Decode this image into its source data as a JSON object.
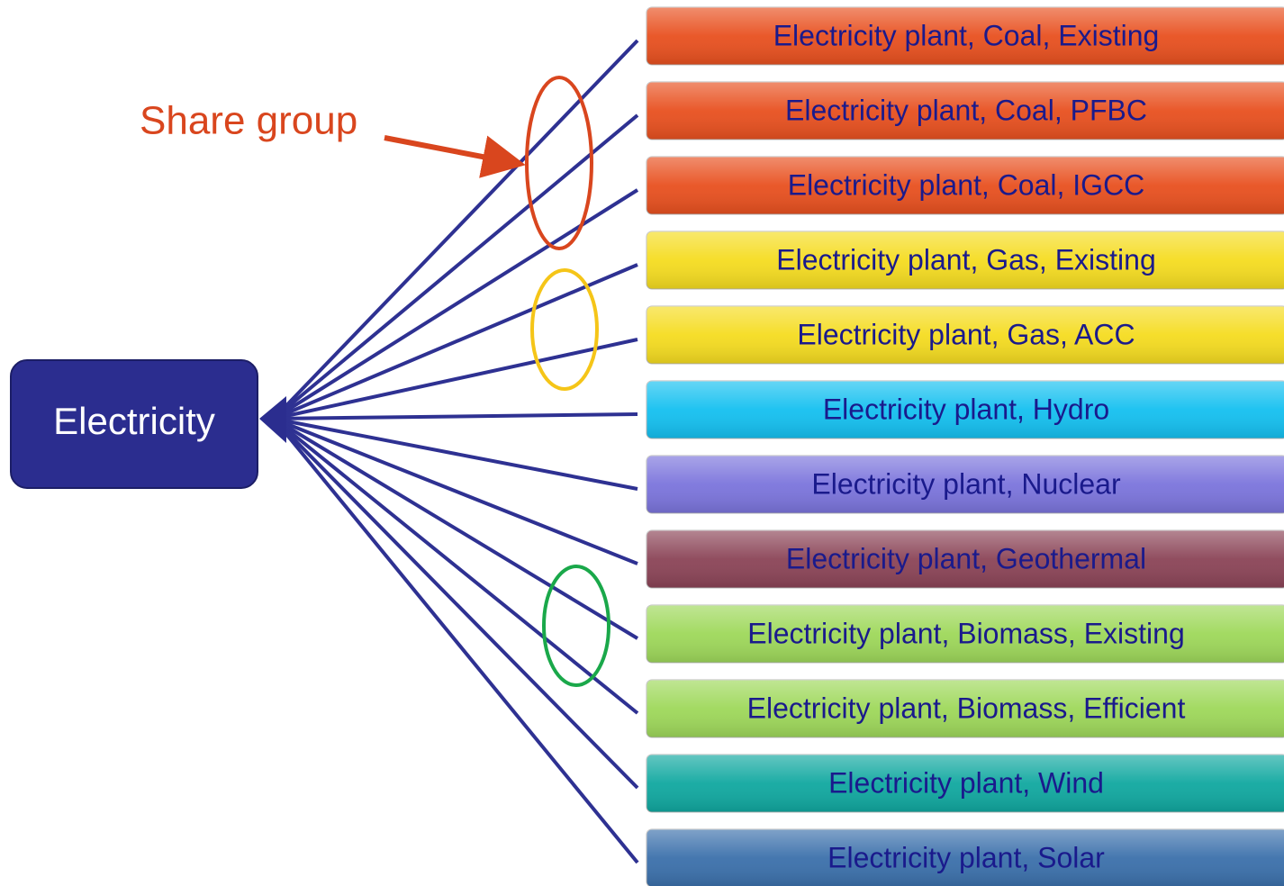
{
  "root": {
    "label": "Electricity"
  },
  "annotation": {
    "label": "Share group"
  },
  "nodes": [
    {
      "label": "Electricity plant, Coal, Existing"
    },
    {
      "label": "Electricity plant, Coal, PFBC"
    },
    {
      "label": "Electricity plant, Coal, IGCC"
    },
    {
      "label": "Electricity plant, Gas, Existing"
    },
    {
      "label": "Electricity plant, Gas, ACC"
    },
    {
      "label": "Electricity plant, Hydro"
    },
    {
      "label": "Electricity plant, Nuclear"
    },
    {
      "label": "Electricity plant, Geothermal"
    },
    {
      "label": "Electricity plant, Biomass, Existing"
    },
    {
      "label": "Electricity plant, Biomass, Efficient"
    },
    {
      "label": "Electricity plant, Wind"
    },
    {
      "label": "Electricity plant, Solar"
    }
  ]
}
